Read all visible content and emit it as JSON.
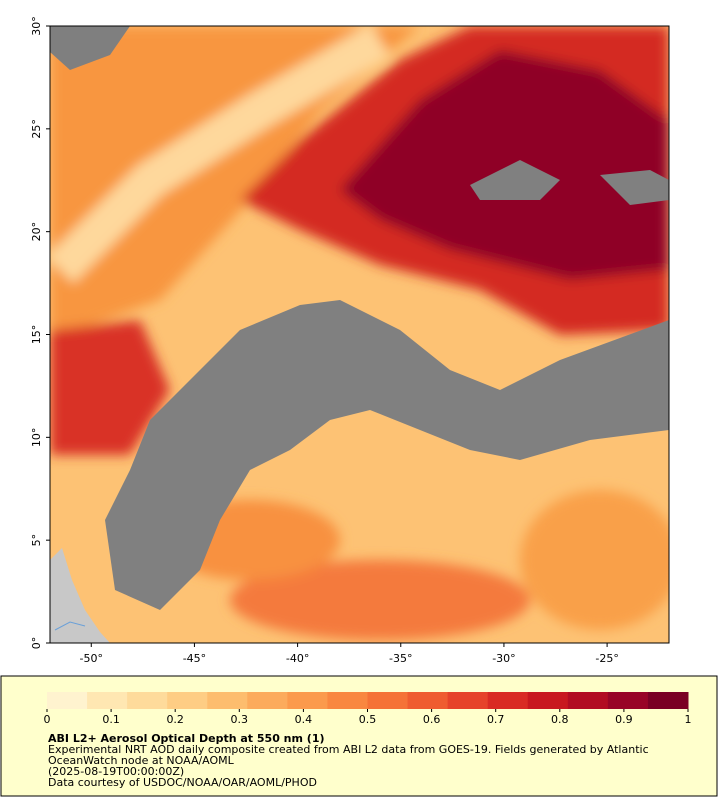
{
  "map": {
    "xlim": [
      -52,
      -22
    ],
    "ylim": [
      0,
      30
    ],
    "xticks": [
      {
        "value": -50,
        "label": "-50°"
      },
      {
        "value": -45,
        "label": "-45°"
      },
      {
        "value": -40,
        "label": "-40°"
      },
      {
        "value": -35,
        "label": "-35°"
      },
      {
        "value": -30,
        "label": "-30°"
      },
      {
        "value": -25,
        "label": "-25°"
      }
    ],
    "yticks": [
      {
        "value": 0,
        "label": "0°"
      },
      {
        "value": 5,
        "label": "5°"
      },
      {
        "value": 10,
        "label": "10°"
      },
      {
        "value": 15,
        "label": "15°"
      },
      {
        "value": 20,
        "label": "20°"
      },
      {
        "value": 25,
        "label": "25°"
      },
      {
        "value": 30,
        "label": "30°"
      }
    ]
  },
  "colorbar": {
    "lim": [
      0,
      1
    ],
    "ticks": [
      0,
      0.1,
      0.2,
      0.3,
      0.4,
      0.5,
      0.6,
      0.7,
      0.8,
      0.9,
      1
    ],
    "colors": [
      "#fff3cf",
      "#ffe7b2",
      "#fedb9b",
      "#fecd84",
      "#fdbd6e",
      "#fcab5c",
      "#fb9a4c",
      "#f98740",
      "#f57237",
      "#ef5c30",
      "#e6432a",
      "#d92b24",
      "#c8181f",
      "#b20c22",
      "#980426",
      "#7a0024"
    ]
  },
  "caption": {
    "title": "ABI L2+ Aerosol Optical Depth at 550 nm (1)",
    "lines": [
      "Experimental NRT AOD daily composite created from ABI L2 data from GOES-19. Fields generated by Atlantic",
      "OceanWatch node at NOAA/AOML",
      "(2025-08-19T00:00:00Z)",
      "Data courtesy of USDOC/NOAA/OAR/AOML/PHOD"
    ]
  }
}
